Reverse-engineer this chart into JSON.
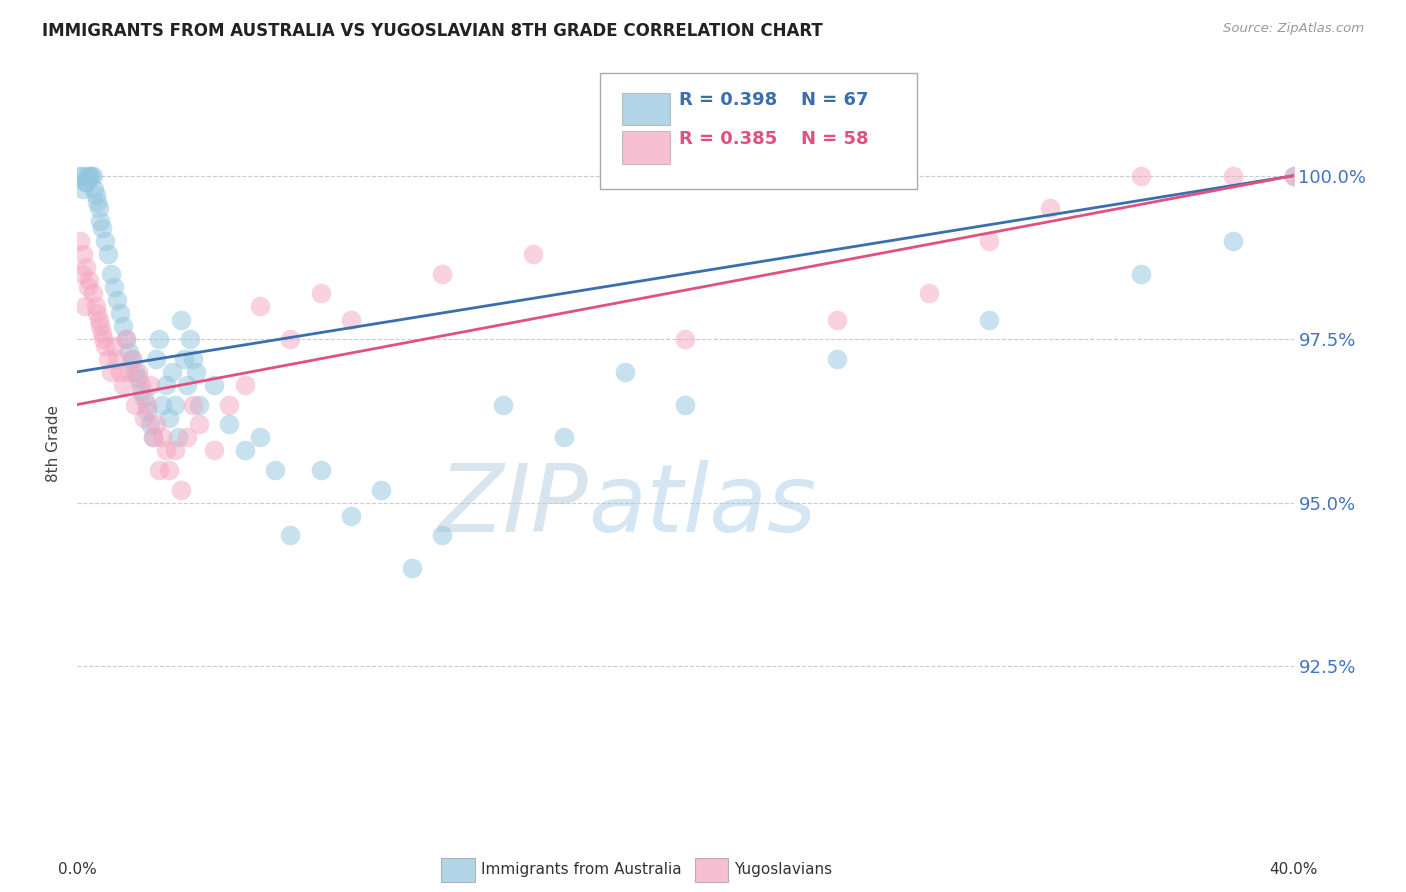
{
  "title": "IMMIGRANTS FROM AUSTRALIA VS YUGOSLAVIAN 8TH GRADE CORRELATION CHART",
  "source": "Source: ZipAtlas.com",
  "ylabel": "8th Grade",
  "y_tick_values": [
    92.5,
    95.0,
    97.5,
    100.0
  ],
  "x_range": [
    0.0,
    40.0
  ],
  "y_range": [
    90.0,
    101.8
  ],
  "legend_R1": "R = 0.398",
  "legend_N1": "N = 67",
  "legend_R2": "R = 0.385",
  "legend_N2": "N = 58",
  "blue_color": "#92c5de",
  "pink_color": "#f4a6c0",
  "blue_line_color": "#3a6fad",
  "pink_line_color": "#e05080",
  "aus_x": [
    0.1,
    0.2,
    0.3,
    0.4,
    0.5,
    0.6,
    0.7,
    0.8,
    0.9,
    1.0,
    1.1,
    1.2,
    1.3,
    1.4,
    1.5,
    1.6,
    1.7,
    1.8,
    1.9,
    2.0,
    2.1,
    2.2,
    2.3,
    2.4,
    2.5,
    2.6,
    2.7,
    2.8,
    2.9,
    3.0,
    3.1,
    3.2,
    3.3,
    3.4,
    3.5,
    3.6,
    3.7,
    3.8,
    3.9,
    4.0,
    4.5,
    5.0,
    5.5,
    6.0,
    6.5,
    7.0,
    8.0,
    9.0,
    10.0,
    11.0,
    12.0,
    14.0,
    16.0,
    18.0,
    20.0,
    25.0,
    30.0,
    35.0,
    38.0,
    40.0,
    0.15,
    0.25,
    0.35,
    0.45,
    0.55,
    0.65,
    0.75
  ],
  "aus_y": [
    100.0,
    99.8,
    99.9,
    100.0,
    100.0,
    99.7,
    99.5,
    99.2,
    99.0,
    98.8,
    98.5,
    98.3,
    98.1,
    97.9,
    97.7,
    97.5,
    97.3,
    97.2,
    97.0,
    96.9,
    96.7,
    96.6,
    96.4,
    96.2,
    96.0,
    97.2,
    97.5,
    96.5,
    96.8,
    96.3,
    97.0,
    96.5,
    96.0,
    97.8,
    97.2,
    96.8,
    97.5,
    97.2,
    97.0,
    96.5,
    96.8,
    96.2,
    95.8,
    96.0,
    95.5,
    94.5,
    95.5,
    94.8,
    95.2,
    94.0,
    94.5,
    96.5,
    96.0,
    97.0,
    96.5,
    97.2,
    97.8,
    98.5,
    99.0,
    100.0,
    100.0,
    99.9,
    100.0,
    100.0,
    99.8,
    99.6,
    99.3
  ],
  "yug_x": [
    0.1,
    0.2,
    0.3,
    0.4,
    0.5,
    0.6,
    0.7,
    0.8,
    0.9,
    1.0,
    1.1,
    1.2,
    1.3,
    1.4,
    1.5,
    1.6,
    1.7,
    1.8,
    1.9,
    2.0,
    2.1,
    2.2,
    2.3,
    2.4,
    2.5,
    2.6,
    2.7,
    2.8,
    2.9,
    3.0,
    3.2,
    3.4,
    3.6,
    3.8,
    4.0,
    4.5,
    5.0,
    5.5,
    6.0,
    7.0,
    8.0,
    9.0,
    12.0,
    15.0,
    20.0,
    25.0,
    28.0,
    30.0,
    32.0,
    35.0,
    38.0,
    40.0,
    0.15,
    0.25,
    0.35,
    0.65,
    0.75,
    0.85
  ],
  "yug_y": [
    99.0,
    98.8,
    98.6,
    98.4,
    98.2,
    98.0,
    97.8,
    97.6,
    97.4,
    97.2,
    97.0,
    97.4,
    97.2,
    97.0,
    96.8,
    97.5,
    97.0,
    97.2,
    96.5,
    97.0,
    96.8,
    96.3,
    96.5,
    96.8,
    96.0,
    96.2,
    95.5,
    96.0,
    95.8,
    95.5,
    95.8,
    95.2,
    96.0,
    96.5,
    96.2,
    95.8,
    96.5,
    96.8,
    98.0,
    97.5,
    98.2,
    97.8,
    98.5,
    98.8,
    97.5,
    97.8,
    98.2,
    99.0,
    99.5,
    100.0,
    100.0,
    100.0,
    98.5,
    98.0,
    98.3,
    97.9,
    97.7,
    97.5
  ],
  "watermark_zip": "ZIP",
  "watermark_atlas": "atlas",
  "background_color": "#ffffff",
  "grid_color": "#cccccc",
  "title_color": "#222222",
  "right_axis_color": "#4472c4",
  "source_color": "#999999",
  "legend_text_color": "#222222"
}
